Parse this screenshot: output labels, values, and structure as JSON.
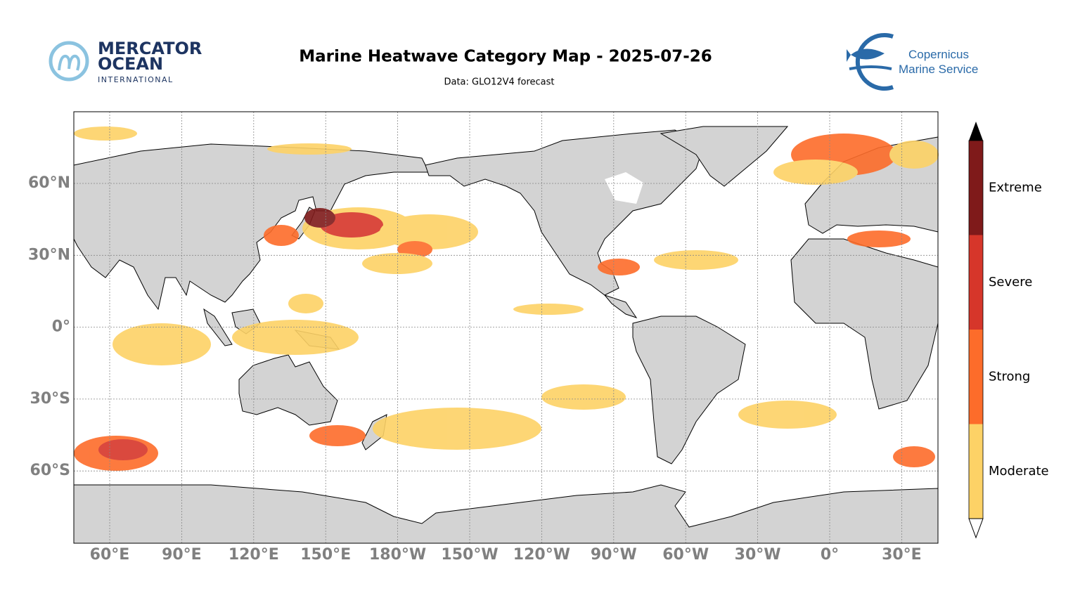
{
  "header": {
    "title": "Marine Heatwave Category Map - 2025-07-26",
    "subtitle": "Data: GLO12V4 forecast",
    "logo_left": {
      "line1": "MERCATOR",
      "line2": "OCEAN",
      "line3": "INTERNATIONAL"
    },
    "logo_right": {
      "line1": "Copernicus",
      "line2": "Marine Service"
    }
  },
  "map": {
    "lon_labels": [
      "60°E",
      "90°E",
      "120°E",
      "150°E",
      "180°W",
      "150°W",
      "120°W",
      "90°W",
      "60°W",
      "30°W",
      "0°",
      "30°E"
    ],
    "lat_labels": [
      "60°N",
      "30°N",
      "0°",
      "30°S",
      "60°S"
    ]
  },
  "legend": {
    "categories": [
      {
        "label": "Moderate",
        "color": "#fdd266"
      },
      {
        "label": "Strong",
        "color": "#fd6c2a"
      },
      {
        "label": "Severe",
        "color": "#d6362a"
      },
      {
        "label": "Extreme",
        "color": "#7f1a1a"
      }
    ]
  }
}
